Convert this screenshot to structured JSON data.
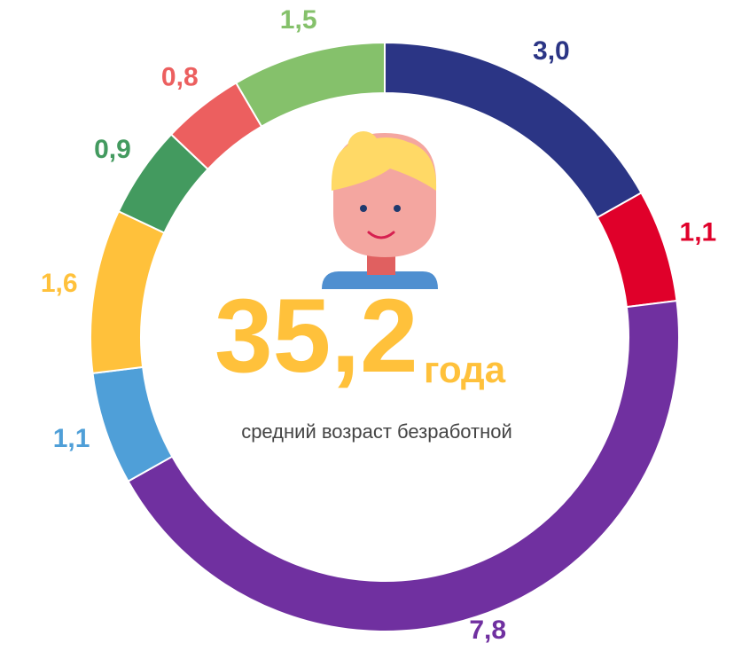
{
  "chart_data": {
    "type": "donut",
    "categories": [
      null,
      null,
      null,
      null,
      null,
      null,
      null,
      null
    ],
    "values": [
      3.0,
      1.1,
      7.8,
      1.1,
      1.6,
      0.9,
      0.8,
      1.5
    ],
    "value_labels": [
      "3,0",
      "1,1",
      "7,8",
      "1,1",
      "1,6",
      "0,9",
      "0,8",
      "1,5"
    ],
    "colors": [
      "#2b3585",
      "#e0002a",
      "#7030a0",
      "#4f9fd8",
      "#ffc13b",
      "#439a5f",
      "#ec5f5f",
      "#85c16b"
    ],
    "center_text": "35,2",
    "center_unit": "года",
    "center_caption": "средний возраст безработной"
  }
}
